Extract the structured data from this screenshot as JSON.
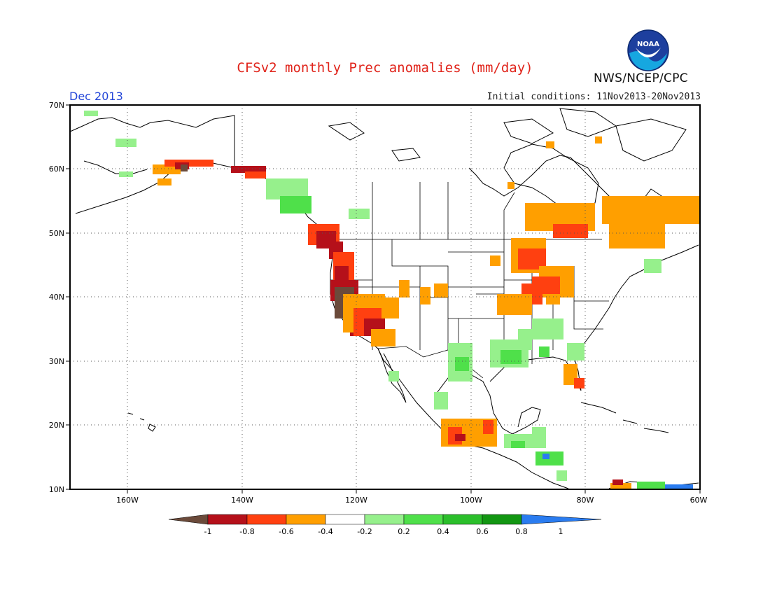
{
  "header": {
    "title": "CFSv2 monthly Prec anomalies (mm/day)",
    "agency": "NWS/NCEP/CPC",
    "logo_text": "NOAA",
    "month": "Dec 2013",
    "initial_conditions": "Initial conditions: 11Nov2013-20Nov2013"
  },
  "map": {
    "lat_labels": [
      "70N",
      "60N",
      "50N",
      "40N",
      "30N",
      "20N",
      "10N"
    ],
    "lon_labels": [
      "160W",
      "140W",
      "120W",
      "100W",
      "80W",
      "60W"
    ]
  },
  "legend": {
    "tick_labels": [
      "-1",
      "-0.8",
      "-0.6",
      "-0.4",
      "-0.2",
      "0.2",
      "0.4",
      "0.6",
      "0.8",
      "1"
    ],
    "colors": [
      "#6b4a3a",
      "#b5101a",
      "#ff4010",
      "#ff9f00",
      "#ffffff",
      "#96f08c",
      "#4fe04a",
      "#2bbf2b",
      "#129612",
      "#2a7cf0"
    ]
  }
}
